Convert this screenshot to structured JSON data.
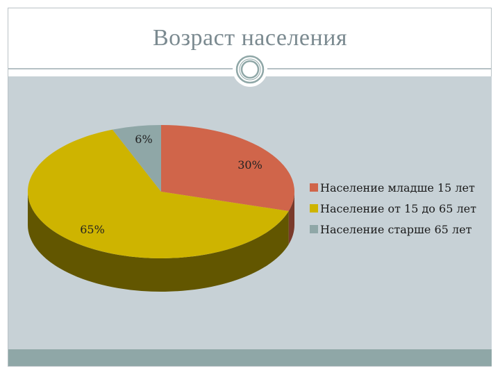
{
  "title": "Возраст населения",
  "chart_data": {
    "type": "pie",
    "style": "3d",
    "slices": [
      {
        "label": "Население младше 15 лет",
        "value": 30,
        "display": "30%",
        "color": "#d0654a",
        "side_color": "#7a3a2b"
      },
      {
        "label": "Население от 15 до 65 лет",
        "value": 65,
        "display": "65%",
        "color": "#ceb400",
        "side_color": "#625600"
      },
      {
        "label": "Население старше 65 лет",
        "value": 6,
        "display": "6%",
        "color": "#8fa7a7",
        "side_color": "#4f6161"
      }
    ],
    "legend_position": "right"
  },
  "colors": {
    "panel": "#c7d1d6",
    "footer": "#8fa7a7",
    "title": "#7b8a90"
  }
}
